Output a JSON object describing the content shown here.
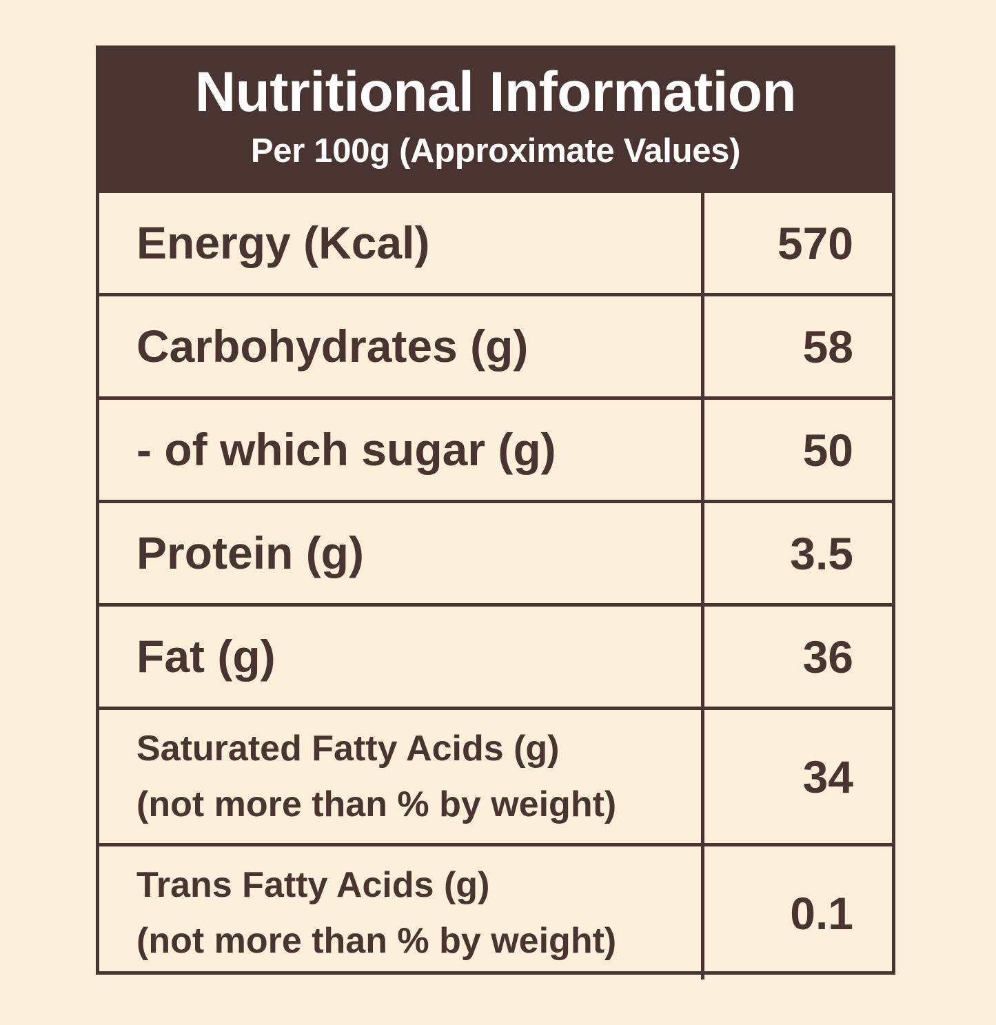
{
  "header": {
    "title": "Nutritional Information",
    "subtitle": "Per 100g (Approximate Values)"
  },
  "rows": [
    {
      "label": "Energy (Kcal)",
      "value": "570"
    },
    {
      "label": "Carbohydrates (g)",
      "value": "58"
    },
    {
      "label": "- of which sugar (g)",
      "value": "50"
    },
    {
      "label": "Protein (g)",
      "value": "3.5"
    },
    {
      "label": "Fat (g)",
      "value": "36"
    },
    {
      "label_line1": "Saturated Fatty Acids (g)",
      "label_line2": "(not more than % by weight)",
      "value": "34"
    },
    {
      "label_line1": "Trans Fatty Acids (g)",
      "label_line2": "(not more than % by weight)",
      "value": "0.1"
    }
  ],
  "colors": {
    "background": "#fdf0da",
    "accent": "#4a3431",
    "header_text": "#ffffff"
  }
}
